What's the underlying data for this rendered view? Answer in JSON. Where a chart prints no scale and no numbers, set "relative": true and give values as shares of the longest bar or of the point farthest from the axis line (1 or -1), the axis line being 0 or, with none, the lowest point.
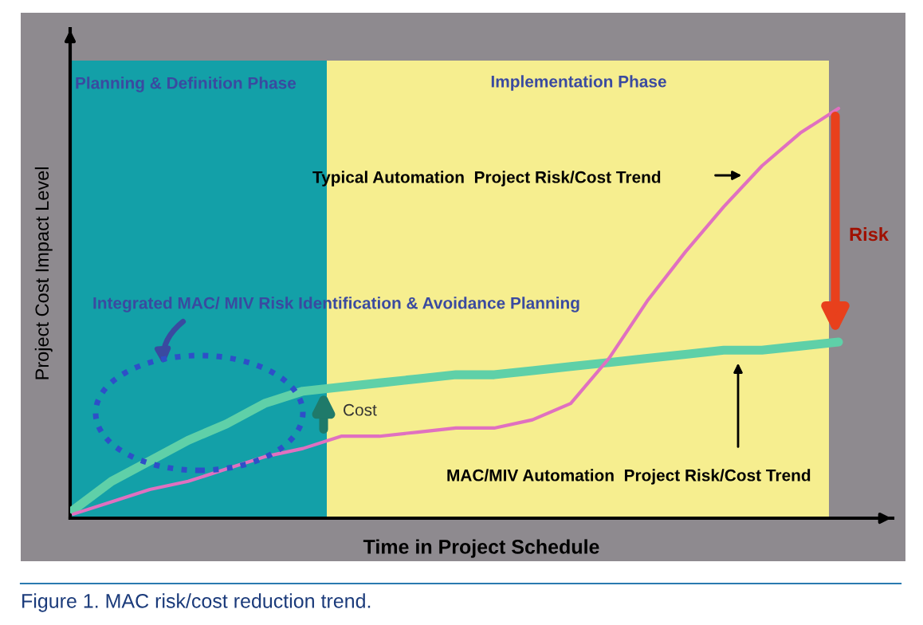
{
  "chart_data": {
    "type": "line",
    "relative": true,
    "xlabel": "Time in Project Schedule",
    "ylabel": "Project Cost Impact Level",
    "categories": [
      null,
      null,
      null,
      null,
      null,
      null,
      null,
      null,
      null,
      null,
      null,
      null,
      null,
      null,
      null,
      null,
      null,
      null,
      null,
      null,
      null
    ],
    "series": [
      {
        "color": "#5fd0a8",
        "values": [
          0.02,
          0.09,
          0.14,
          0.19,
          0.23,
          0.28,
          0.31,
          0.32,
          0.33,
          0.34,
          0.35,
          0.35,
          0.36,
          0.37,
          0.38,
          0.39,
          0.4,
          0.41,
          0.41,
          0.42,
          0.43
        ]
      },
      {
        "color": "#e070c0",
        "values": [
          0.01,
          0.04,
          0.07,
          0.09,
          0.12,
          0.15,
          0.17,
          0.2,
          0.2,
          0.21,
          0.22,
          0.22,
          0.24,
          0.28,
          0.39,
          0.53,
          0.65,
          0.76,
          0.86,
          0.94,
          1.0
        ]
      }
    ],
    "annotations": [
      "Planning & Definition Phase",
      "Implementation Phase",
      "Typical Automation  Project Risk/Cost Trend",
      "Risk",
      "Integrated MAC/ MIV Risk Identification & Avoidance Planning",
      "Cost",
      "MAC/MIV Automation  Project Risk/Cost Trend",
      "Figure 1. MAC risk/cost reduction trend."
    ],
    "line_style": "solid"
  }
}
